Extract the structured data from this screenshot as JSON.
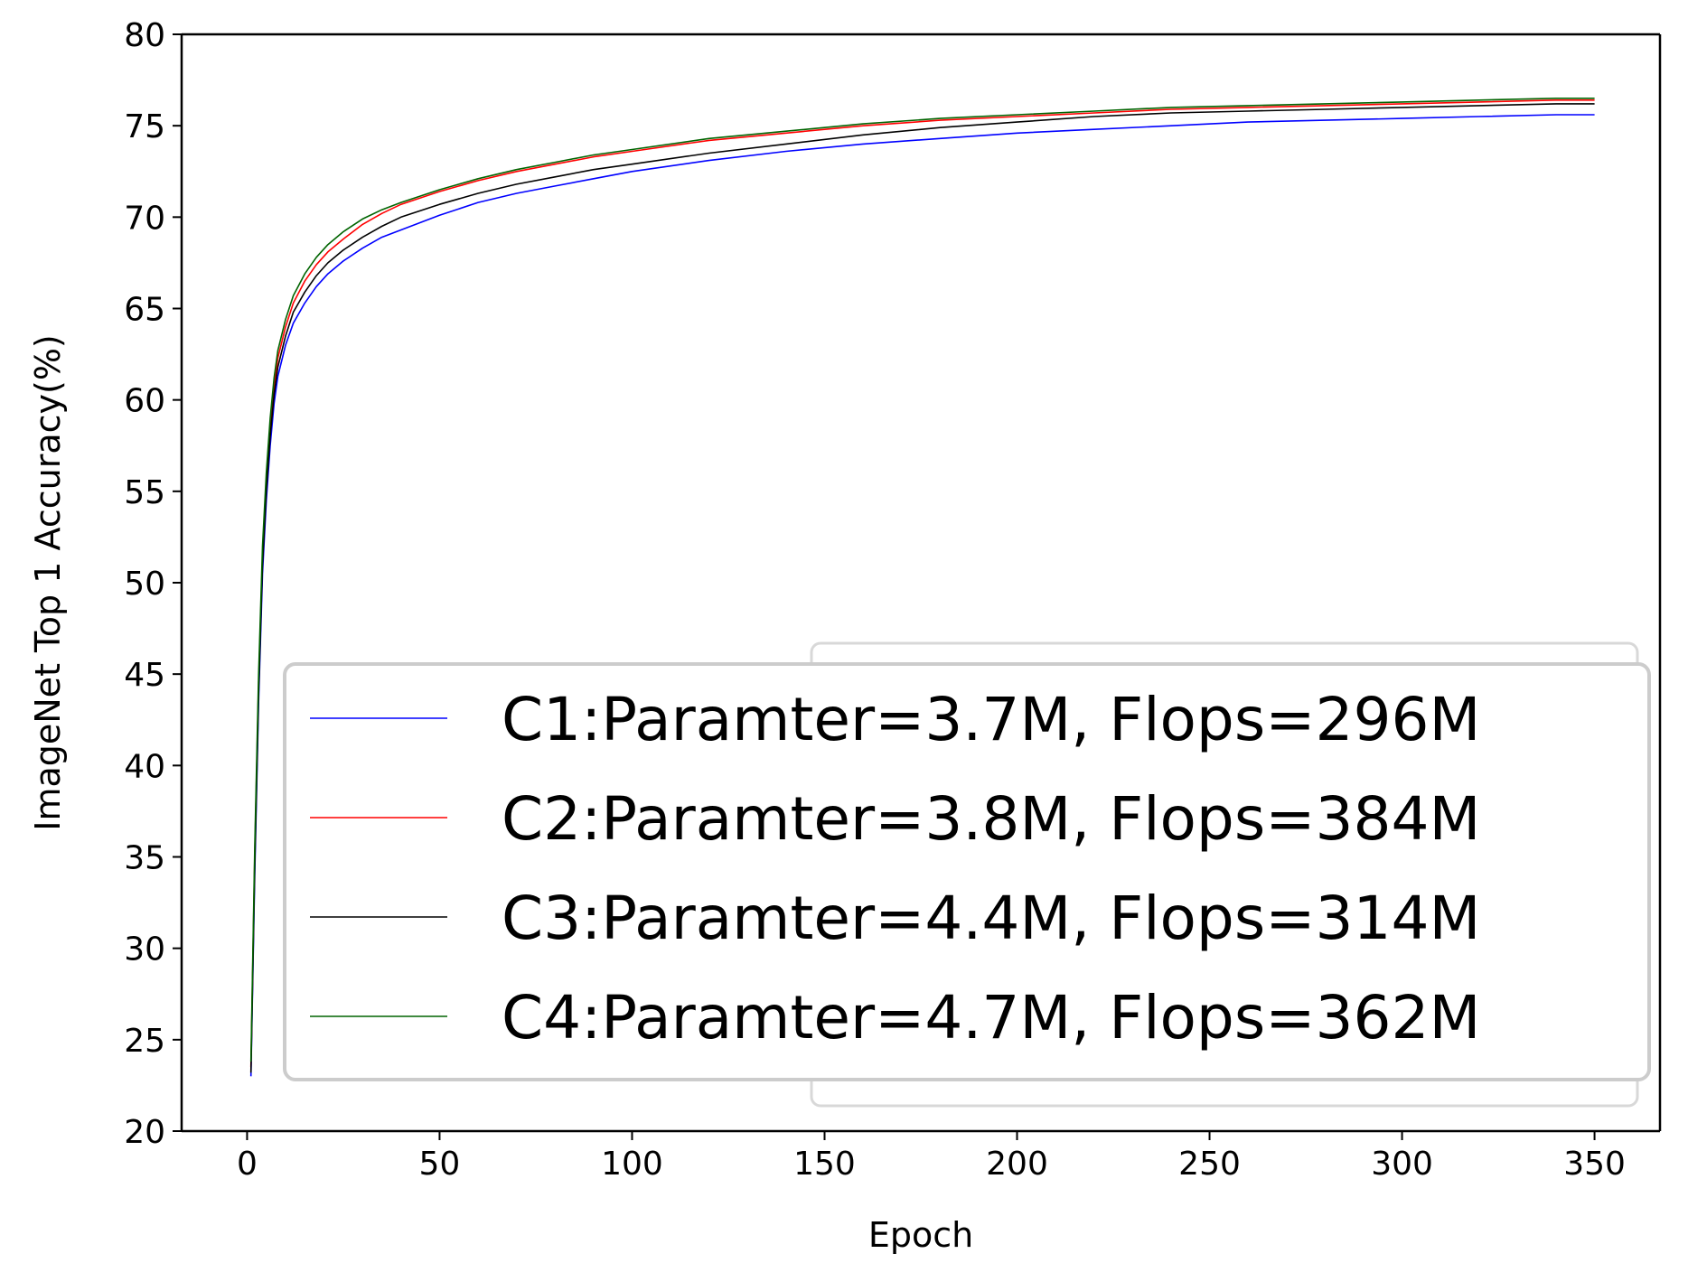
{
  "chart_data": {
    "type": "line",
    "title": "",
    "xlabel": "Epoch",
    "ylabel": "ImageNet Top 1 Accuracy(%)",
    "xlim": [
      -17,
      367
    ],
    "ylim": [
      20,
      80
    ],
    "xticks": [
      "0",
      "50",
      "100",
      "150",
      "200",
      "250",
      "300",
      "350"
    ],
    "yticks": [
      "20",
      "25",
      "30",
      "35",
      "40",
      "45",
      "50",
      "55",
      "60",
      "65",
      "70",
      "75",
      "80"
    ],
    "grid": false,
    "legend_position": "lower-right",
    "series": [
      {
        "name": "C1:Paramter=3.7M, Flops=296M",
        "color": "#0000ff",
        "x": [
          1,
          2,
          3,
          4,
          5,
          6,
          7,
          8,
          10,
          12,
          15,
          18,
          21,
          25,
          30,
          35,
          40,
          50,
          60,
          70,
          80,
          90,
          100,
          120,
          140,
          160,
          180,
          200,
          220,
          240,
          260,
          280,
          300,
          320,
          340,
          350
        ],
        "y": [
          23.0,
          34.0,
          43.5,
          50.5,
          54.5,
          57.5,
          59.8,
          61.3,
          63.0,
          64.2,
          65.3,
          66.2,
          66.9,
          67.6,
          68.3,
          68.9,
          69.3,
          70.1,
          70.8,
          71.3,
          71.7,
          72.1,
          72.5,
          73.1,
          73.6,
          74.0,
          74.3,
          74.6,
          74.8,
          75.0,
          75.2,
          75.3,
          75.4,
          75.5,
          75.6,
          75.6
        ]
      },
      {
        "name": "C2:Paramter=3.8M, Flops=384M",
        "color": "#ff0000",
        "x": [
          1,
          2,
          3,
          4,
          5,
          6,
          7,
          8,
          10,
          12,
          15,
          18,
          21,
          25,
          30,
          35,
          40,
          50,
          60,
          70,
          80,
          90,
          100,
          120,
          140,
          160,
          180,
          200,
          220,
          240,
          260,
          280,
          300,
          320,
          340,
          350
        ],
        "y": [
          23.5,
          35.0,
          44.5,
          51.5,
          55.5,
          58.5,
          60.8,
          62.3,
          64.0,
          65.3,
          66.5,
          67.4,
          68.1,
          68.8,
          69.6,
          70.2,
          70.7,
          71.4,
          72.0,
          72.5,
          72.9,
          73.3,
          73.6,
          74.2,
          74.6,
          75.0,
          75.3,
          75.5,
          75.7,
          75.9,
          76.0,
          76.1,
          76.2,
          76.3,
          76.4,
          76.4
        ]
      },
      {
        "name": "C3:Paramter=4.4M, Flops=314M",
        "color": "#000000",
        "x": [
          1,
          2,
          3,
          4,
          5,
          6,
          7,
          8,
          10,
          12,
          15,
          18,
          21,
          25,
          30,
          35,
          40,
          50,
          60,
          70,
          80,
          90,
          100,
          120,
          140,
          160,
          180,
          200,
          220,
          240,
          260,
          280,
          300,
          320,
          340,
          350
        ],
        "y": [
          23.2,
          34.5,
          44.0,
          51.0,
          55.0,
          58.0,
          60.3,
          61.8,
          63.5,
          64.8,
          65.9,
          66.8,
          67.5,
          68.2,
          68.9,
          69.5,
          70.0,
          70.7,
          71.3,
          71.8,
          72.2,
          72.6,
          72.9,
          73.5,
          74.0,
          74.5,
          74.9,
          75.2,
          75.5,
          75.7,
          75.8,
          75.9,
          76.0,
          76.1,
          76.2,
          76.2
        ]
      },
      {
        "name": "C4:Paramter=4.7M, Flops=362M",
        "color": "#006400",
        "x": [
          1,
          2,
          3,
          4,
          5,
          6,
          7,
          8,
          10,
          12,
          15,
          18,
          21,
          25,
          30,
          35,
          40,
          50,
          60,
          70,
          80,
          90,
          100,
          120,
          140,
          160,
          180,
          200,
          220,
          240,
          260,
          280,
          300,
          320,
          340,
          350
        ],
        "y": [
          23.8,
          35.5,
          45.0,
          52.0,
          56.0,
          59.0,
          61.2,
          62.7,
          64.4,
          65.7,
          66.9,
          67.8,
          68.5,
          69.2,
          69.9,
          70.4,
          70.8,
          71.5,
          72.1,
          72.6,
          73.0,
          73.4,
          73.7,
          74.3,
          74.7,
          75.1,
          75.4,
          75.6,
          75.8,
          76.0,
          76.1,
          76.2,
          76.3,
          76.4,
          76.5,
          76.5
        ]
      }
    ]
  }
}
